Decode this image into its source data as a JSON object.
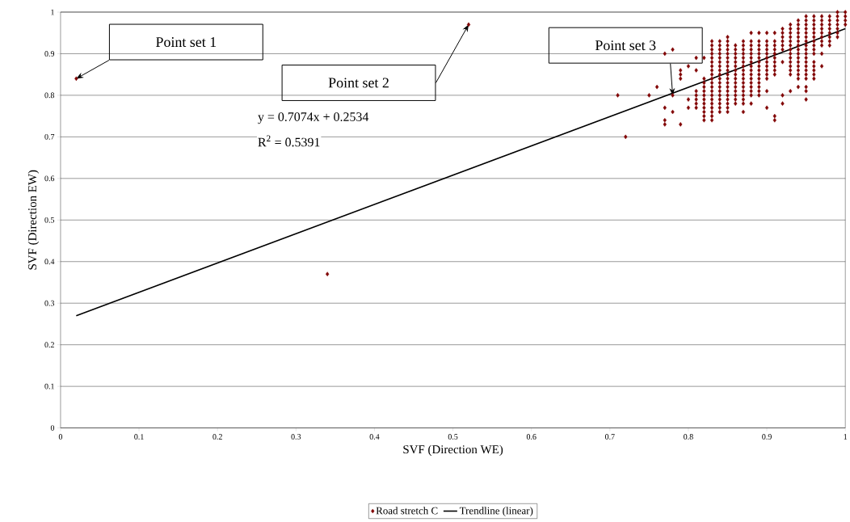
{
  "chart_data": {
    "type": "scatter",
    "xlabel": "SVF (Direction WE)",
    "ylabel": "SVF (Direction EW)",
    "xlim": [
      0,
      1
    ],
    "ylim": [
      0,
      1
    ],
    "xticks": [
      0,
      0.1,
      0.2,
      0.3,
      0.4,
      0.5,
      0.6,
      0.7,
      0.8,
      0.9,
      1
    ],
    "yticks": [
      0,
      0.1,
      0.2,
      0.3,
      0.4,
      0.5,
      0.6,
      0.7,
      0.8,
      0.9,
      1
    ],
    "grid": "y",
    "legend": "bottom",
    "annotations": [
      "Point set 1",
      "Point set 2",
      "Point set 3",
      "y = 0.7074x + 0.2534",
      "R$^{2}$ = 0.5391"
    ],
    "series": [
      {
        "name": "Road stretch C",
        "color": "#800000",
        "marker": "diamond",
        "x": [
          0.02,
          0.34,
          0.52,
          0.71,
          0.72,
          0.75,
          0.76,
          0.77,
          0.77,
          0.77,
          0.77,
          0.78,
          0.78,
          0.78,
          0.79,
          0.79,
          0.79,
          0.79,
          0.8,
          0.8,
          0.8,
          0.81,
          0.81,
          0.81,
          0.81,
          0.81,
          0.81,
          0.81,
          0.82,
          0.82,
          0.82,
          0.82,
          0.82,
          0.82,
          0.82,
          0.82,
          0.82,
          0.82,
          0.82,
          0.82,
          0.83,
          0.83,
          0.83,
          0.83,
          0.83,
          0.83,
          0.83,
          0.83,
          0.83,
          0.83,
          0.83,
          0.83,
          0.83,
          0.83,
          0.83,
          0.83,
          0.83,
          0.83,
          0.83,
          0.83,
          0.84,
          0.84,
          0.84,
          0.84,
          0.84,
          0.84,
          0.84,
          0.84,
          0.84,
          0.84,
          0.84,
          0.84,
          0.84,
          0.84,
          0.84,
          0.84,
          0.84,
          0.84,
          0.85,
          0.85,
          0.85,
          0.85,
          0.85,
          0.85,
          0.85,
          0.85,
          0.85,
          0.85,
          0.85,
          0.85,
          0.85,
          0.85,
          0.85,
          0.85,
          0.85,
          0.85,
          0.85,
          0.86,
          0.86,
          0.86,
          0.86,
          0.86,
          0.86,
          0.86,
          0.86,
          0.86,
          0.86,
          0.86,
          0.86,
          0.86,
          0.86,
          0.86,
          0.87,
          0.87,
          0.87,
          0.87,
          0.87,
          0.87,
          0.87,
          0.87,
          0.87,
          0.87,
          0.87,
          0.87,
          0.87,
          0.87,
          0.87,
          0.87,
          0.87,
          0.88,
          0.88,
          0.88,
          0.88,
          0.88,
          0.88,
          0.88,
          0.88,
          0.88,
          0.88,
          0.88,
          0.88,
          0.88,
          0.88,
          0.88,
          0.88,
          0.89,
          0.89,
          0.89,
          0.89,
          0.89,
          0.89,
          0.89,
          0.89,
          0.89,
          0.89,
          0.89,
          0.89,
          0.89,
          0.89,
          0.89,
          0.9,
          0.9,
          0.9,
          0.9,
          0.9,
          0.9,
          0.9,
          0.9,
          0.9,
          0.9,
          0.9,
          0.9,
          0.9,
          0.91,
          0.91,
          0.91,
          0.91,
          0.91,
          0.91,
          0.91,
          0.91,
          0.91,
          0.91,
          0.91,
          0.91,
          0.92,
          0.92,
          0.92,
          0.92,
          0.92,
          0.92,
          0.92,
          0.92,
          0.92,
          0.93,
          0.93,
          0.93,
          0.93,
          0.93,
          0.93,
          0.93,
          0.93,
          0.93,
          0.93,
          0.93,
          0.93,
          0.93,
          0.93,
          0.94,
          0.94,
          0.94,
          0.94,
          0.94,
          0.94,
          0.94,
          0.94,
          0.94,
          0.94,
          0.94,
          0.94,
          0.94,
          0.94,
          0.94,
          0.94,
          0.95,
          0.95,
          0.95,
          0.95,
          0.95,
          0.95,
          0.95,
          0.95,
          0.95,
          0.95,
          0.95,
          0.95,
          0.95,
          0.95,
          0.95,
          0.95,
          0.95,
          0.95,
          0.95,
          0.96,
          0.96,
          0.96,
          0.96,
          0.96,
          0.96,
          0.96,
          0.96,
          0.96,
          0.96,
          0.96,
          0.96,
          0.96,
          0.96,
          0.96,
          0.97,
          0.97,
          0.97,
          0.97,
          0.97,
          0.97,
          0.97,
          0.97,
          0.97,
          0.97,
          0.98,
          0.98,
          0.98,
          0.98,
          0.98,
          0.98,
          0.98,
          0.98,
          0.99,
          0.99,
          0.99,
          0.99,
          0.99,
          0.99,
          0.99,
          1.0,
          1.0,
          1.0,
          1.0
        ],
        "values": [
          0.84,
          0.37,
          0.97,
          0.8,
          0.7,
          0.8,
          0.82,
          0.73,
          0.74,
          0.77,
          0.9,
          0.76,
          0.8,
          0.91,
          0.73,
          0.84,
          0.85,
          0.86,
          0.77,
          0.79,
          0.87,
          0.77,
          0.78,
          0.79,
          0.8,
          0.81,
          0.86,
          0.89,
          0.74,
          0.75,
          0.76,
          0.77,
          0.78,
          0.79,
          0.8,
          0.81,
          0.82,
          0.83,
          0.84,
          0.89,
          0.74,
          0.75,
          0.76,
          0.77,
          0.78,
          0.79,
          0.8,
          0.81,
          0.82,
          0.83,
          0.84,
          0.85,
          0.86,
          0.87,
          0.88,
          0.89,
          0.9,
          0.91,
          0.92,
          0.93,
          0.76,
          0.77,
          0.78,
          0.79,
          0.8,
          0.81,
          0.82,
          0.83,
          0.84,
          0.85,
          0.86,
          0.87,
          0.88,
          0.89,
          0.9,
          0.91,
          0.92,
          0.93,
          0.76,
          0.77,
          0.78,
          0.79,
          0.8,
          0.81,
          0.82,
          0.83,
          0.84,
          0.85,
          0.86,
          0.87,
          0.88,
          0.89,
          0.9,
          0.91,
          0.92,
          0.93,
          0.94,
          0.78,
          0.79,
          0.8,
          0.81,
          0.82,
          0.83,
          0.84,
          0.85,
          0.86,
          0.87,
          0.88,
          0.89,
          0.9,
          0.91,
          0.92,
          0.76,
          0.78,
          0.79,
          0.8,
          0.81,
          0.82,
          0.83,
          0.84,
          0.85,
          0.86,
          0.87,
          0.88,
          0.89,
          0.9,
          0.91,
          0.92,
          0.93,
          0.78,
          0.8,
          0.81,
          0.82,
          0.83,
          0.84,
          0.85,
          0.86,
          0.87,
          0.88,
          0.89,
          0.9,
          0.91,
          0.92,
          0.93,
          0.95,
          0.8,
          0.81,
          0.82,
          0.83,
          0.84,
          0.85,
          0.86,
          0.87,
          0.88,
          0.89,
          0.9,
          0.91,
          0.92,
          0.93,
          0.95,
          0.77,
          0.81,
          0.84,
          0.85,
          0.86,
          0.87,
          0.88,
          0.89,
          0.9,
          0.91,
          0.92,
          0.93,
          0.95,
          0.74,
          0.75,
          0.85,
          0.86,
          0.87,
          0.88,
          0.89,
          0.9,
          0.91,
          0.92,
          0.93,
          0.95,
          0.78,
          0.8,
          0.88,
          0.91,
          0.92,
          0.93,
          0.94,
          0.95,
          0.96,
          0.81,
          0.85,
          0.86,
          0.87,
          0.88,
          0.89,
          0.9,
          0.91,
          0.92,
          0.93,
          0.94,
          0.95,
          0.96,
          0.97,
          0.82,
          0.84,
          0.85,
          0.86,
          0.87,
          0.88,
          0.89,
          0.9,
          0.91,
          0.92,
          0.93,
          0.94,
          0.95,
          0.96,
          0.97,
          0.98,
          0.79,
          0.81,
          0.82,
          0.84,
          0.85,
          0.86,
          0.87,
          0.88,
          0.89,
          0.9,
          0.91,
          0.92,
          0.93,
          0.94,
          0.95,
          0.96,
          0.97,
          0.98,
          0.99,
          0.84,
          0.85,
          0.86,
          0.87,
          0.88,
          0.9,
          0.91,
          0.92,
          0.93,
          0.94,
          0.95,
          0.96,
          0.97,
          0.98,
          0.99,
          0.87,
          0.9,
          0.92,
          0.93,
          0.94,
          0.95,
          0.96,
          0.97,
          0.98,
          0.99,
          0.92,
          0.93,
          0.94,
          0.95,
          0.96,
          0.97,
          0.98,
          0.99,
          0.94,
          0.95,
          0.96,
          0.97,
          0.98,
          0.99,
          1.0,
          0.97,
          0.98,
          0.99,
          1.0
        ]
      },
      {
        "name": "Trendline (linear)",
        "color": "#000000",
        "type": "line",
        "marker": "none",
        "x": [
          0.02,
          1.0
        ],
        "values": [
          0.27,
          0.96
        ]
      }
    ]
  }
}
